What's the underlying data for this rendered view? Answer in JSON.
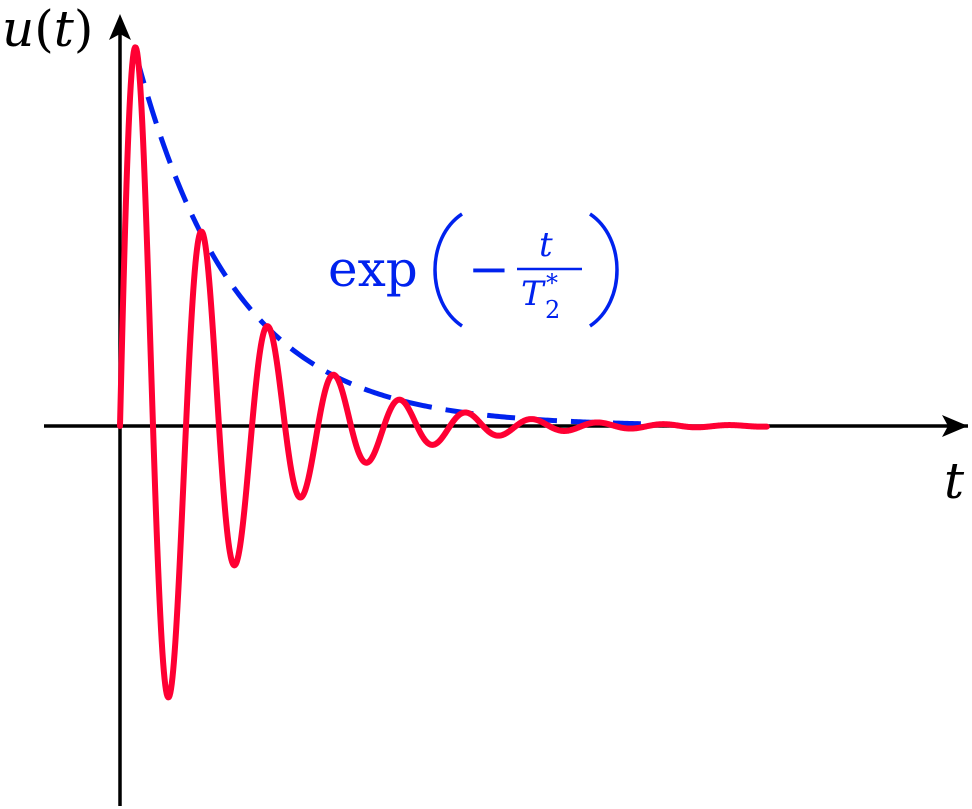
{
  "axes": {
    "y_label_func": "u",
    "y_label_open": "(",
    "y_label_var": "t",
    "y_label_close": ")",
    "x_label": "t"
  },
  "envelope_label": {
    "func": "exp",
    "minus": "−",
    "numerator": "t",
    "denominator": "T",
    "subscript": "2",
    "superscript": "*"
  },
  "colors": {
    "axis": "#000000",
    "signal": "#ff0033",
    "envelope": "#0022ee",
    "background": "#ffffff"
  },
  "signal": {
    "amplitude": 1.0,
    "decay_time_T2_star": 1.5,
    "period": 1.0,
    "t_end": 9.8
  }
}
